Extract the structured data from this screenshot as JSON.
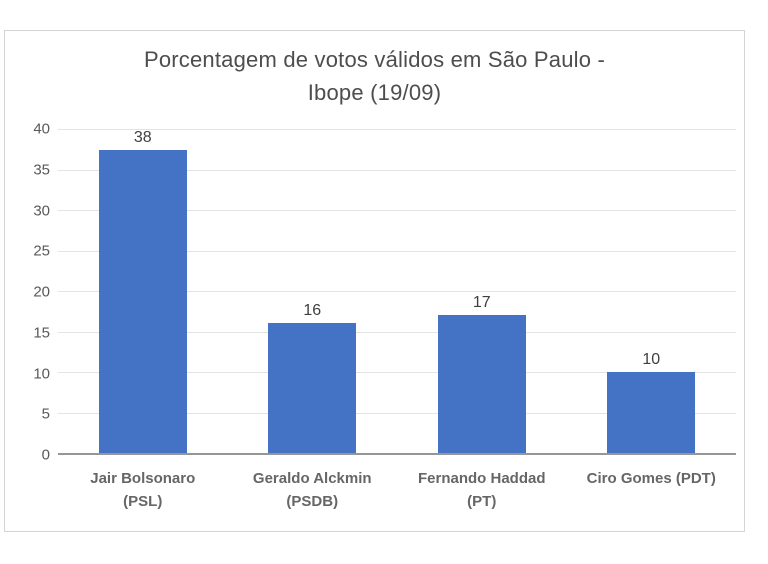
{
  "chart_data": {
    "type": "bar",
    "title": "Porcentagem de votos válidos em São Paulo - Ibope (19/09)",
    "title_lines": [
      "Porcentagem de votos válidos em São Paulo -",
      "Ibope (19/09)"
    ],
    "categories": [
      "Jair Bolsonaro (PSL)",
      "Geraldo Alckmin (PSDB)",
      "Fernando Haddad (PT)",
      "Ciro Gomes (PDT)"
    ],
    "values": [
      38,
      16,
      17,
      10
    ],
    "data_labels": [
      "38",
      "16",
      "17",
      "10"
    ],
    "xlabel": "",
    "ylabel": "",
    "ylim": [
      0,
      40
    ],
    "yticks": [
      0,
      5,
      10,
      15,
      20,
      25,
      30,
      35,
      40
    ],
    "grid": "horizontal",
    "legend": "none",
    "bar_color": "#4472C4"
  },
  "colors": {
    "bar": "#4472C4",
    "gridline": "#e3e3e3",
    "axis_line": "#969696",
    "tick_text": "#595959",
    "data_label_text": "#3f3f3f",
    "category_text": "#666666",
    "title_text": "#4d4d4d",
    "frame_border": "#d4d4d4",
    "background": "#ffffff"
  }
}
